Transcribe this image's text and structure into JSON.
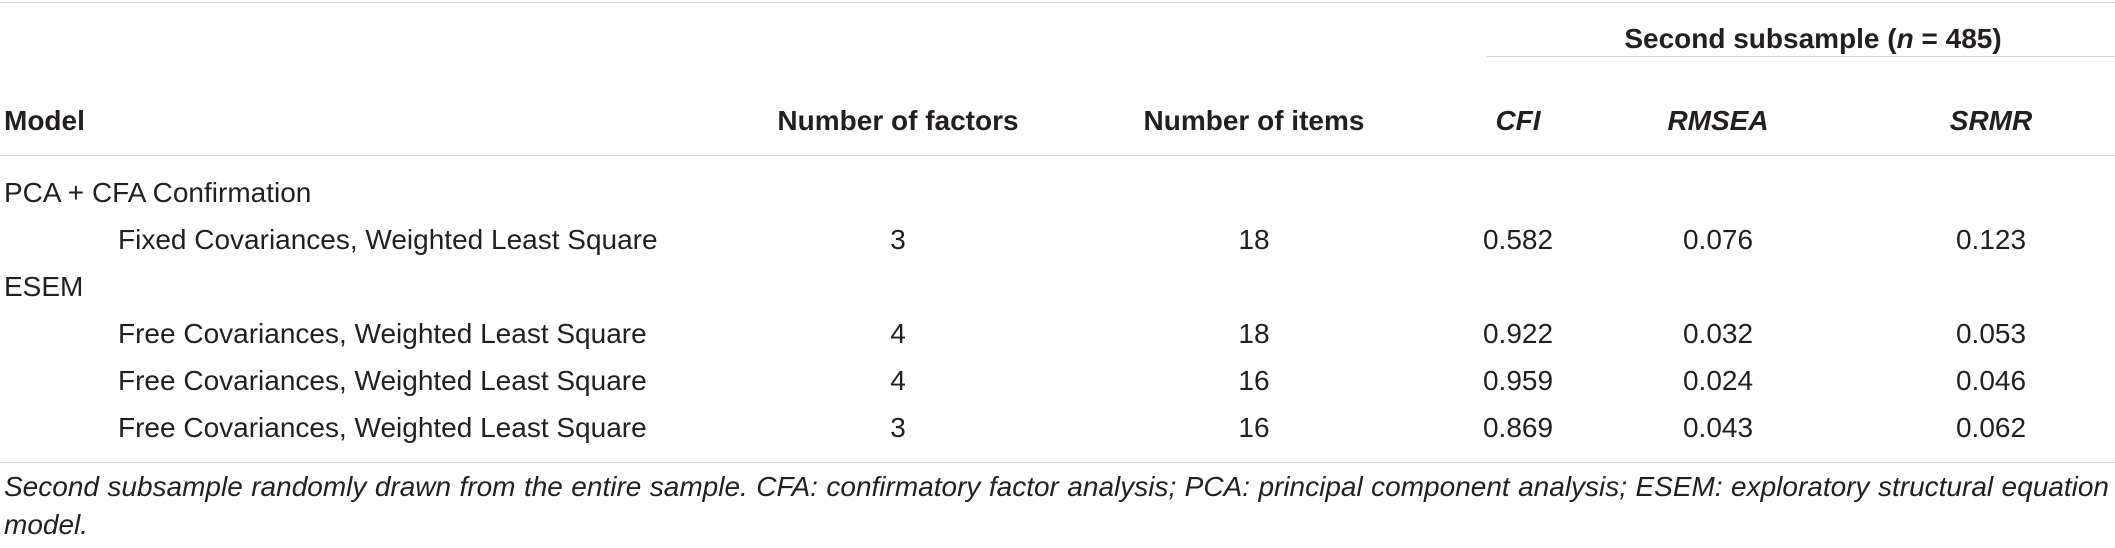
{
  "table": {
    "group_header": {
      "text": "Second subsample (",
      "n_label": "n",
      "n_rest": " = 485)"
    },
    "columns": {
      "model": "Model",
      "factors": "Number of factors",
      "items": "Number of items",
      "cfi": "CFI",
      "rmsea": "RMSEA",
      "srmr": "SRMR"
    },
    "sections": [
      {
        "label": "PCA + CFA Confirmation",
        "rows": [
          {
            "model": "Fixed Covariances, Weighted Least Square",
            "factors": "3",
            "items": "18",
            "cfi": "0.582",
            "rmsea": "0.076",
            "srmr": "0.123"
          }
        ]
      },
      {
        "label": "ESEM",
        "rows": [
          {
            "model": "Free Covariances, Weighted Least Square",
            "factors": "4",
            "items": "18",
            "cfi": "0.922",
            "rmsea": "0.032",
            "srmr": "0.053"
          },
          {
            "model": "Free Covariances, Weighted Least Square",
            "factors": "4",
            "items": "16",
            "cfi": "0.959",
            "rmsea": "0.024",
            "srmr": "0.046"
          },
          {
            "model": "Free Covariances, Weighted Least Square",
            "factors": "3",
            "items": "16",
            "cfi": "0.869",
            "rmsea": "0.043",
            "srmr": "0.062"
          }
        ]
      }
    ],
    "note": "Second subsample randomly drawn from the entire sample. CFA: confirmatory factor analysis; PCA: principal component analysis; ESEM: exploratory structural equation model."
  }
}
